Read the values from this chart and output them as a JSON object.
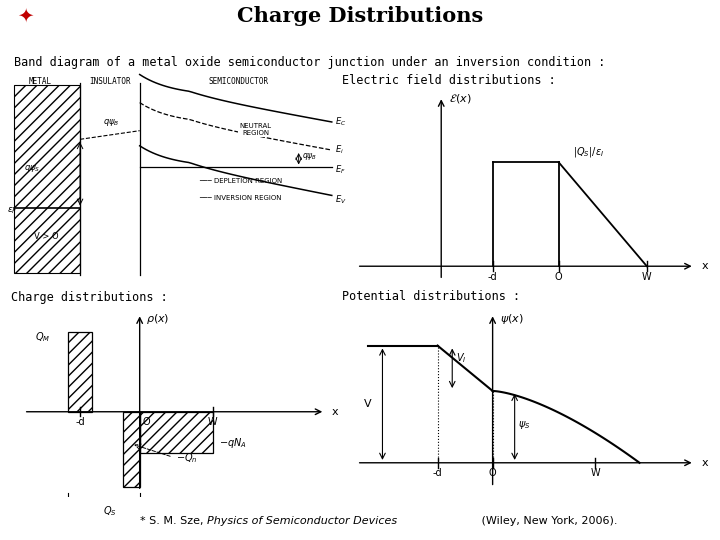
{
  "title": "Charge Distributions",
  "subtitle": "Band diagram of a metal oxide semiconductor junction under an inversion condition :",
  "ef_label": "Electric field distributions :",
  "charge_label": "Charge distributions :",
  "potential_label": "Potential distributions :",
  "footer_normal": "* S. M. Sze, ",
  "footer_italic": "Physics of Semiconductor Devices",
  "footer_end": " (Wiley, New York, 2006).",
  "bar1_color": "#5b9bd5",
  "bar2_color": "#2e75b6",
  "bar3_color": "#70ad47"
}
